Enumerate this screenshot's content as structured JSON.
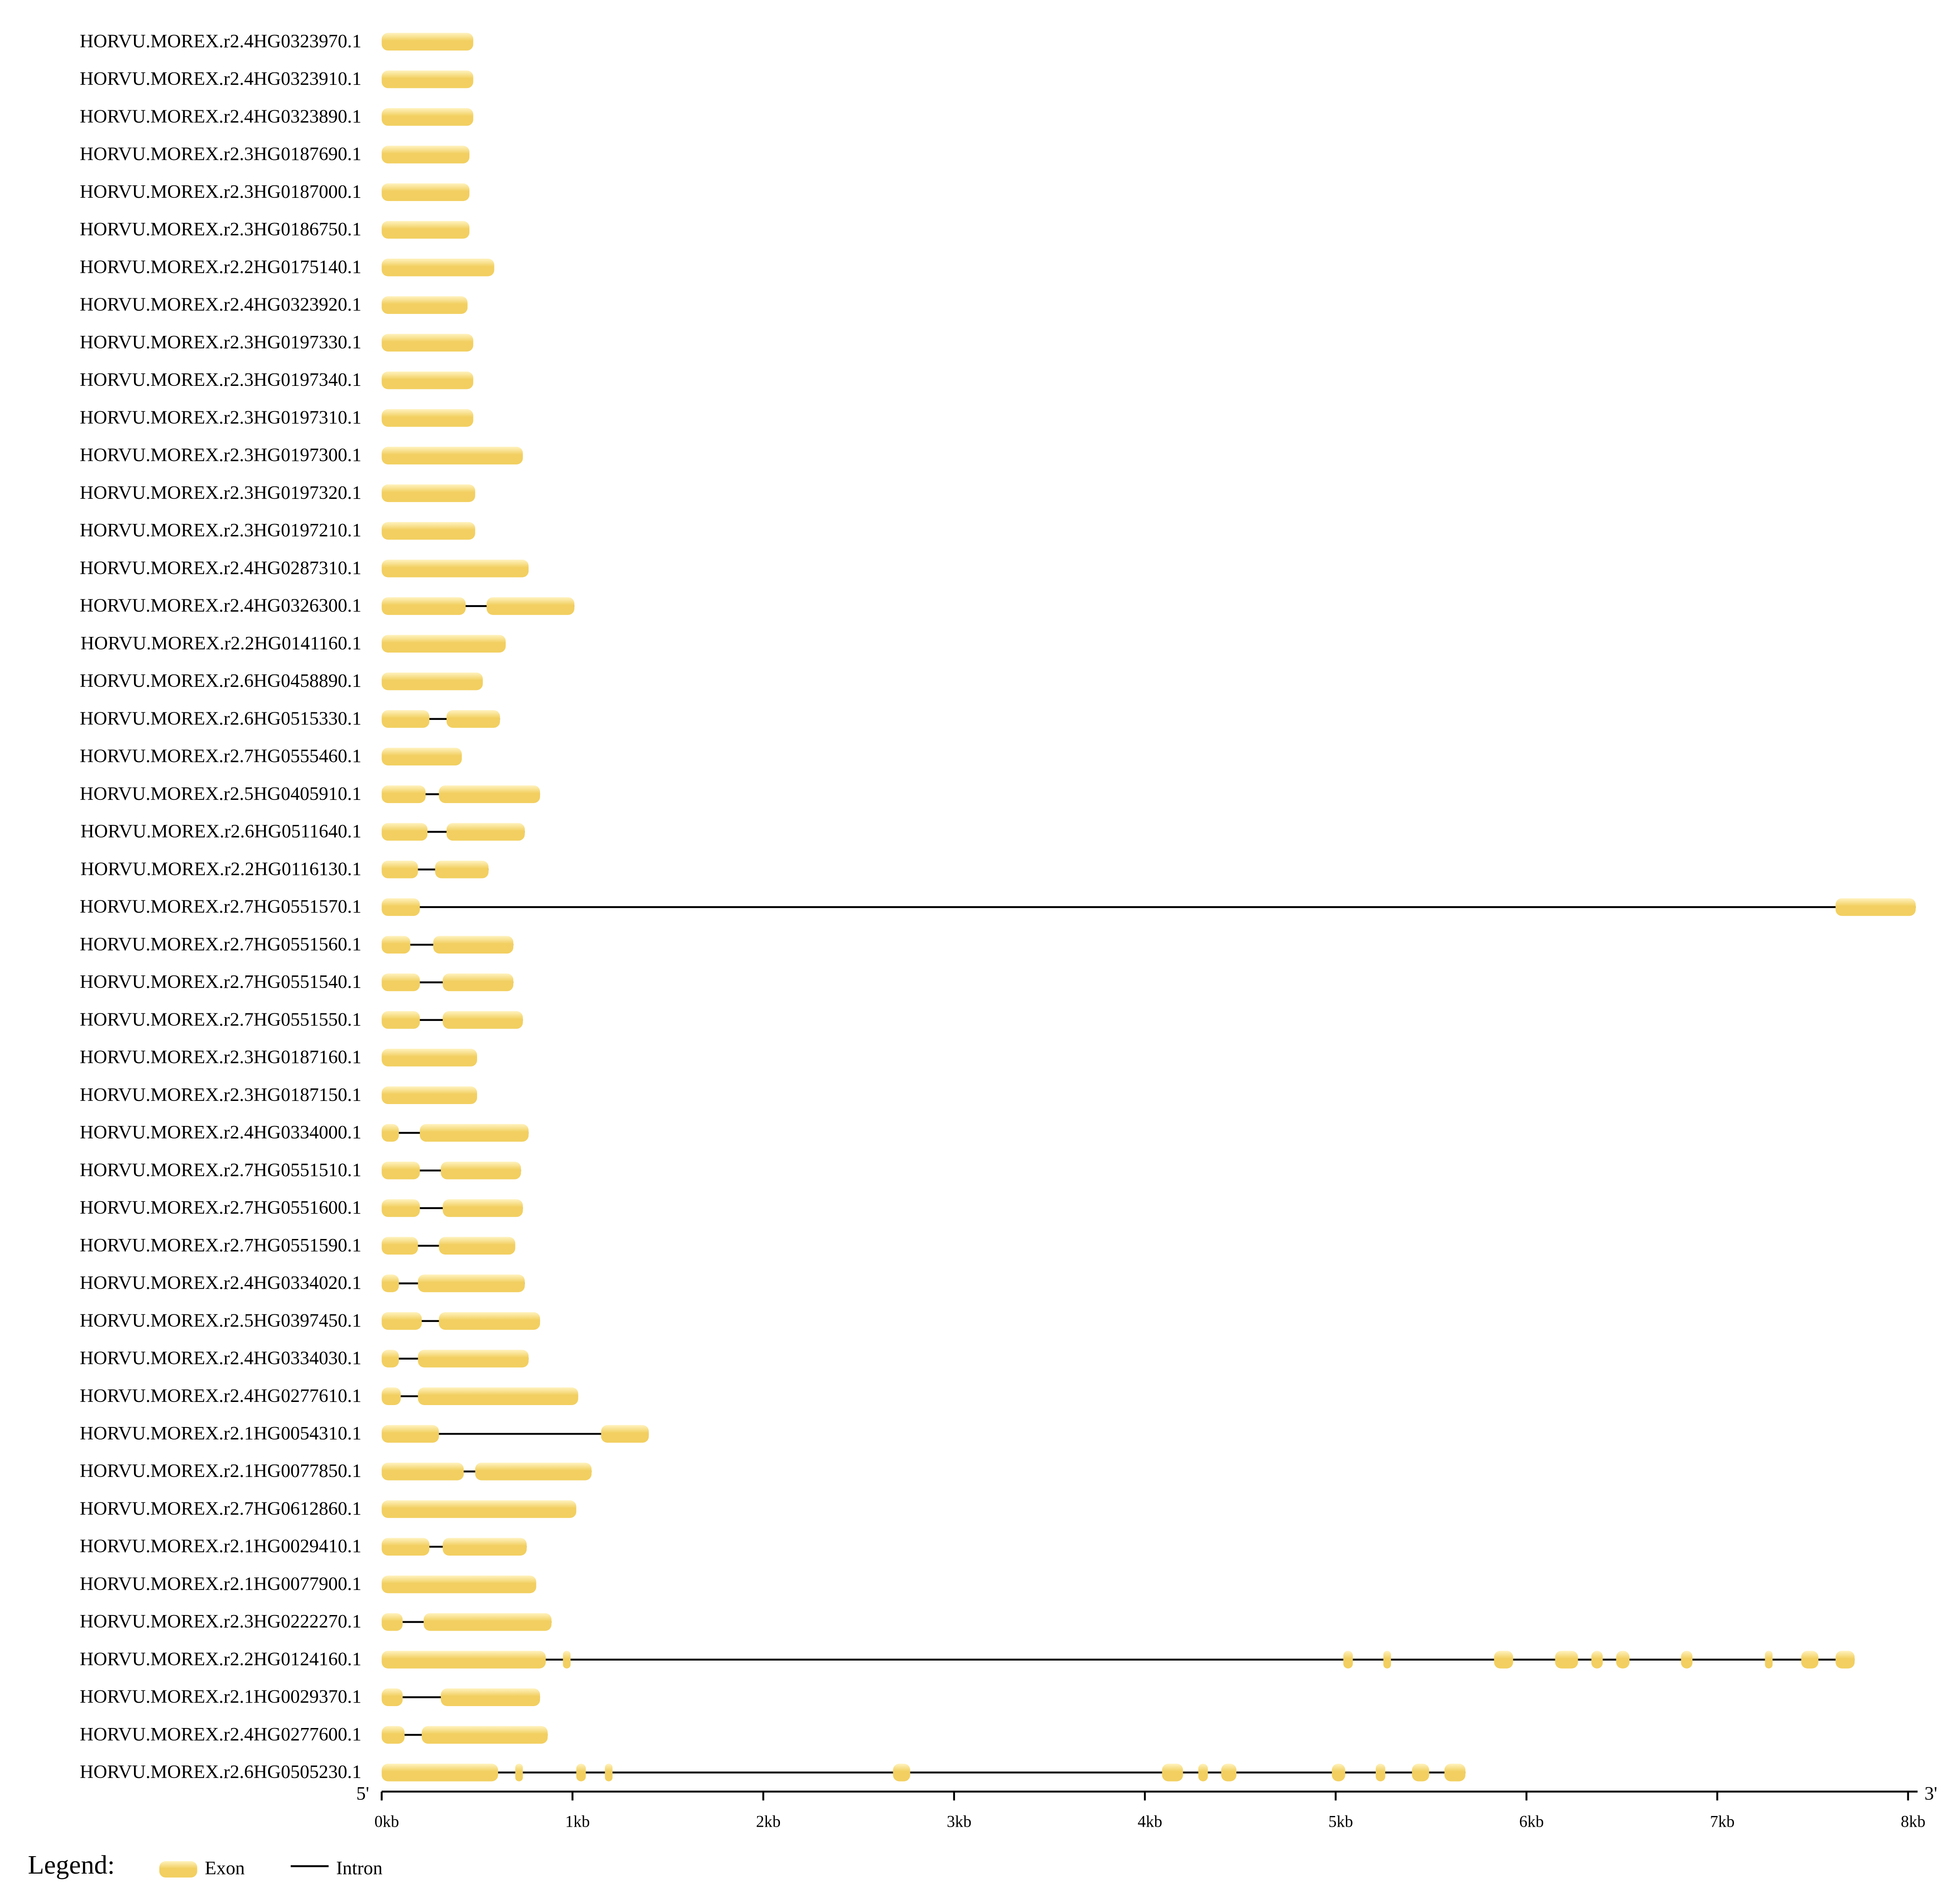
{
  "chart_data": {
    "type": "gene-structure",
    "xlim": [
      0,
      8.05
    ],
    "xticks": [
      {
        "value": 0,
        "label": "0kb"
      },
      {
        "value": 1,
        "label": "1kb"
      },
      {
        "value": 2,
        "label": "2kb"
      },
      {
        "value": 3,
        "label": "3kb"
      },
      {
        "value": 4,
        "label": "4kb"
      },
      {
        "value": 5,
        "label": "5kb"
      },
      {
        "value": 6,
        "label": "6kb"
      },
      {
        "value": 7,
        "label": "7kb"
      },
      {
        "value": 8,
        "label": "8kb"
      }
    ],
    "five_prime": "5'",
    "three_prime": "3'",
    "exon_color": "#f2cf60",
    "intron_color": "#000000",
    "legend": {
      "title": "Legend:",
      "exon": "Exon",
      "intron": "Intron"
    },
    "genes": [
      {
        "name": "HORVU.MOREX.r2.4HG0323970.1",
        "exons": [
          [
            0,
            0.48
          ]
        ]
      },
      {
        "name": "HORVU.MOREX.r2.4HG0323910.1",
        "exons": [
          [
            0,
            0.48
          ]
        ]
      },
      {
        "name": "HORVU.MOREX.r2.4HG0323890.1",
        "exons": [
          [
            0,
            0.48
          ]
        ]
      },
      {
        "name": "HORVU.MOREX.r2.3HG0187690.1",
        "exons": [
          [
            0,
            0.46
          ]
        ]
      },
      {
        "name": "HORVU.MOREX.r2.3HG0187000.1",
        "exons": [
          [
            0,
            0.46
          ]
        ]
      },
      {
        "name": "HORVU.MOREX.r2.3HG0186750.1",
        "exons": [
          [
            0,
            0.46
          ]
        ]
      },
      {
        "name": "HORVU.MOREX.r2.2HG0175140.1",
        "exons": [
          [
            0,
            0.59
          ]
        ]
      },
      {
        "name": "HORVU.MOREX.r2.4HG0323920.1",
        "exons": [
          [
            0,
            0.45
          ]
        ]
      },
      {
        "name": "HORVU.MOREX.r2.3HG0197330.1",
        "exons": [
          [
            0,
            0.48
          ]
        ]
      },
      {
        "name": "HORVU.MOREX.r2.3HG0197340.1",
        "exons": [
          [
            0,
            0.48
          ]
        ]
      },
      {
        "name": "HORVU.MOREX.r2.3HG0197310.1",
        "exons": [
          [
            0,
            0.48
          ]
        ]
      },
      {
        "name": "HORVU.MOREX.r2.3HG0197300.1",
        "exons": [
          [
            0,
            0.74
          ]
        ]
      },
      {
        "name": "HORVU.MOREX.r2.3HG0197320.1",
        "exons": [
          [
            0,
            0.49
          ]
        ]
      },
      {
        "name": "HORVU.MOREX.r2.3HG0197210.1",
        "exons": [
          [
            0,
            0.49
          ]
        ]
      },
      {
        "name": "HORVU.MOREX.r2.4HG0287310.1",
        "exons": [
          [
            0,
            0.77
          ]
        ]
      },
      {
        "name": "HORVU.MOREX.r2.4HG0326300.1",
        "exons": [
          [
            0,
            0.44
          ],
          [
            0.55,
            1.01
          ]
        ]
      },
      {
        "name": "HORVU.MOREX.r2.2HG0141160.1",
        "exons": [
          [
            0,
            0.65
          ]
        ]
      },
      {
        "name": "HORVU.MOREX.r2.6HG0458890.1",
        "exons": [
          [
            0,
            0.53
          ]
        ]
      },
      {
        "name": "HORVU.MOREX.r2.6HG0515330.1",
        "exons": [
          [
            0,
            0.25
          ],
          [
            0.34,
            0.62
          ]
        ]
      },
      {
        "name": "HORVU.MOREX.r2.7HG0555460.1",
        "exons": [
          [
            0,
            0.42
          ]
        ]
      },
      {
        "name": "HORVU.MOREX.r2.5HG0405910.1",
        "exons": [
          [
            0,
            0.23
          ],
          [
            0.3,
            0.83
          ]
        ]
      },
      {
        "name": "HORVU.MOREX.r2.6HG0511640.1",
        "exons": [
          [
            0,
            0.24
          ],
          [
            0.34,
            0.75
          ]
        ]
      },
      {
        "name": "HORVU.MOREX.r2.2HG0116130.1",
        "exons": [
          [
            0,
            0.19
          ],
          [
            0.28,
            0.56
          ]
        ]
      },
      {
        "name": "HORVU.MOREX.r2.7HG0551570.1",
        "exons": [
          [
            0,
            0.2
          ],
          [
            7.62,
            8.04
          ]
        ]
      },
      {
        "name": "HORVU.MOREX.r2.7HG0551560.1",
        "exons": [
          [
            0,
            0.15
          ],
          [
            0.27,
            0.69
          ]
        ]
      },
      {
        "name": "HORVU.MOREX.r2.7HG0551540.1",
        "exons": [
          [
            0,
            0.2
          ],
          [
            0.32,
            0.69
          ]
        ]
      },
      {
        "name": "HORVU.MOREX.r2.7HG0551550.1",
        "exons": [
          [
            0,
            0.2
          ],
          [
            0.32,
            0.74
          ]
        ]
      },
      {
        "name": "HORVU.MOREX.r2.3HG0187160.1",
        "exons": [
          [
            0,
            0.5
          ]
        ]
      },
      {
        "name": "HORVU.MOREX.r2.3HG0187150.1",
        "exons": [
          [
            0,
            0.5
          ]
        ]
      },
      {
        "name": "HORVU.MOREX.r2.4HG0334000.1",
        "exons": [
          [
            0,
            0.09
          ],
          [
            0.2,
            0.77
          ]
        ]
      },
      {
        "name": "HORVU.MOREX.r2.7HG0551510.1",
        "exons": [
          [
            0,
            0.2
          ],
          [
            0.31,
            0.73
          ]
        ]
      },
      {
        "name": "HORVU.MOREX.r2.7HG0551600.1",
        "exons": [
          [
            0,
            0.2
          ],
          [
            0.32,
            0.74
          ]
        ]
      },
      {
        "name": "HORVU.MOREX.r2.7HG0551590.1",
        "exons": [
          [
            0,
            0.19
          ],
          [
            0.3,
            0.7
          ]
        ]
      },
      {
        "name": "HORVU.MOREX.r2.4HG0334020.1",
        "exons": [
          [
            0,
            0.09
          ],
          [
            0.19,
            0.75
          ]
        ]
      },
      {
        "name": "HORVU.MOREX.r2.5HG0397450.1",
        "exons": [
          [
            0,
            0.21
          ],
          [
            0.3,
            0.83
          ]
        ]
      },
      {
        "name": "HORVU.MOREX.r2.4HG0334030.1",
        "exons": [
          [
            0,
            0.09
          ],
          [
            0.19,
            0.77
          ]
        ]
      },
      {
        "name": "HORVU.MOREX.r2.4HG0277610.1",
        "exons": [
          [
            0,
            0.1
          ],
          [
            0.19,
            1.03
          ]
        ]
      },
      {
        "name": "HORVU.MOREX.r2.1HG0054310.1",
        "exons": [
          [
            0,
            0.3
          ],
          [
            1.15,
            1.4
          ]
        ]
      },
      {
        "name": "HORVU.MOREX.r2.1HG0077850.1",
        "exons": [
          [
            0,
            0.43
          ],
          [
            0.49,
            1.1
          ]
        ]
      },
      {
        "name": "HORVU.MOREX.r2.7HG0612860.1",
        "exons": [
          [
            0,
            1.02
          ]
        ]
      },
      {
        "name": "HORVU.MOREX.r2.1HG0029410.1",
        "exons": [
          [
            0,
            0.25
          ],
          [
            0.32,
            0.76
          ]
        ]
      },
      {
        "name": "HORVU.MOREX.r2.1HG0077900.1",
        "exons": [
          [
            0,
            0.81
          ]
        ]
      },
      {
        "name": "HORVU.MOREX.r2.3HG0222270.1",
        "exons": [
          [
            0,
            0.11
          ],
          [
            0.22,
            0.89
          ]
        ]
      },
      {
        "name": "HORVU.MOREX.r2.2HG0124160.1",
        "exons": [
          [
            0,
            0.86
          ],
          [
            0.95,
            0.99
          ],
          [
            5.04,
            5.09
          ],
          [
            5.25,
            5.29
          ],
          [
            5.83,
            5.93
          ],
          [
            6.15,
            6.27
          ],
          [
            6.34,
            6.4
          ],
          [
            6.47,
            6.54
          ],
          [
            6.81,
            6.87
          ],
          [
            7.25,
            7.29
          ],
          [
            7.44,
            7.53
          ],
          [
            7.62,
            7.72
          ]
        ]
      },
      {
        "name": "HORVU.MOREX.r2.1HG0029370.1",
        "exons": [
          [
            0,
            0.11
          ],
          [
            0.31,
            0.83
          ]
        ]
      },
      {
        "name": "HORVU.MOREX.r2.4HG0277600.1",
        "exons": [
          [
            0,
            0.12
          ],
          [
            0.21,
            0.87
          ]
        ]
      },
      {
        "name": "HORVU.MOREX.r2.6HG0505230.1",
        "exons": [
          [
            0,
            0.61
          ],
          [
            0.7,
            0.74
          ],
          [
            1.02,
            1.07
          ],
          [
            1.17,
            1.21
          ],
          [
            2.68,
            2.77
          ],
          [
            4.09,
            4.2
          ],
          [
            4.28,
            4.33
          ],
          [
            4.4,
            4.48
          ],
          [
            4.98,
            5.05
          ],
          [
            5.21,
            5.26
          ],
          [
            5.4,
            5.49
          ],
          [
            5.57,
            5.68
          ]
        ]
      }
    ]
  }
}
